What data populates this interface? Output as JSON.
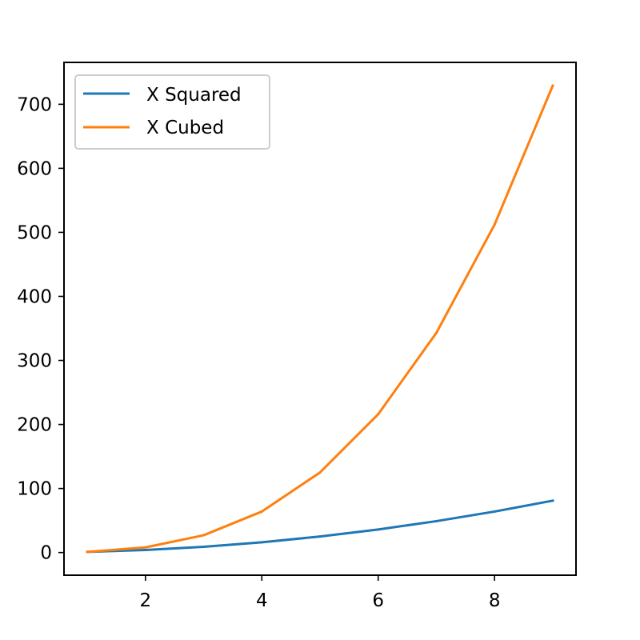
{
  "chart_data": {
    "type": "line",
    "title": "",
    "xlabel": "",
    "ylabel": "",
    "x": [
      1,
      2,
      3,
      4,
      5,
      6,
      7,
      8,
      9
    ],
    "series": [
      {
        "name": "X Squared",
        "color": "#1f77b4",
        "values": [
          1,
          4,
          9,
          16,
          25,
          36,
          49,
          64,
          81
        ]
      },
      {
        "name": "X Cubed",
        "color": "#ff7f0e",
        "values": [
          1,
          8,
          27,
          64,
          125,
          216,
          343,
          512,
          729
        ]
      }
    ],
    "xlim": [
      0.6,
      9.4
    ],
    "ylim": [
      -35.4,
      765.4
    ],
    "xticks": [
      2,
      4,
      6,
      8
    ],
    "xtick_labels": [
      "2",
      "4",
      "6",
      "8"
    ],
    "yticks": [
      0,
      100,
      200,
      300,
      400,
      500,
      600,
      700
    ],
    "ytick_labels": [
      "0",
      "100",
      "200",
      "300",
      "400",
      "500",
      "600",
      "700"
    ],
    "grid": false,
    "legend_position": "upper left"
  }
}
